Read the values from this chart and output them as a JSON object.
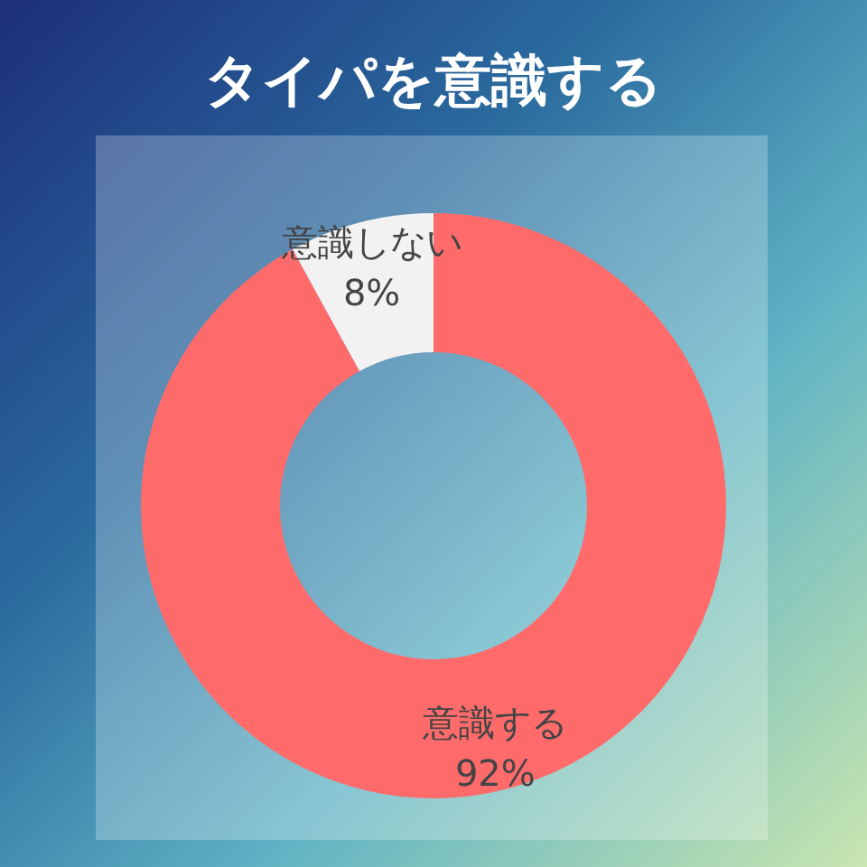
{
  "chart_data": {
    "type": "donut",
    "title": "タイパを意識する",
    "categories": [
      "意識する",
      "意識しない"
    ],
    "values": [
      92,
      8
    ],
    "value_labels": [
      "92%",
      "8%"
    ],
    "colors": [
      "#ff6b6b",
      "#f2f2f2"
    ]
  }
}
